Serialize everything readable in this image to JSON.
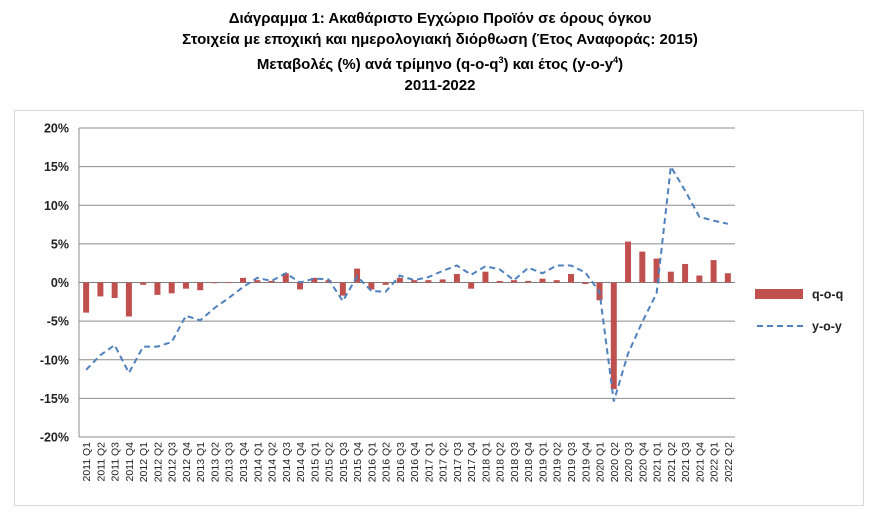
{
  "titles": {
    "line1": "Διάγραμμα 1: Ακαθάριστο Εγχώριο Προϊόν σε όρους όγκου",
    "line2": "Στοιχεία με εποχική και ημερολογιακή διόρθωση (Έτος Αναφοράς: 2015)",
    "line3_main": "Μεταβολές (%) ανά τρίμηνο (q-o-q",
    "line3_sup1": "3",
    "line3_mid": ") και έτος (y-o-y",
    "line3_sup2": "4",
    "line3_end": ")",
    "line4": "2011-2022"
  },
  "chart_data": {
    "type": "bar",
    "title": "",
    "xlabel": "",
    "ylabel": "",
    "ylim": [
      -20,
      20
    ],
    "yticks": [
      20,
      15,
      10,
      5,
      0,
      -5,
      -10,
      -15,
      -20
    ],
    "ytick_labels": [
      "20%",
      "15%",
      "10%",
      "5%",
      "0%",
      "-5%",
      "-10%",
      "-15%",
      "-20%"
    ],
    "grid": true,
    "legend_placement": "right",
    "categories": [
      "2011 Q1",
      "2011 Q2",
      "2011 Q3",
      "2011 Q4",
      "2012 Q1",
      "2012 Q2",
      "2012 Q3",
      "2012 Q4",
      "2013 Q1",
      "2013 Q2",
      "2013 Q3",
      "2013 Q4",
      "2014 Q1",
      "2014 Q2",
      "2014 Q3",
      "2014 Q4",
      "2015 Q1",
      "2015 Q2",
      "2015 Q3",
      "2015 Q4",
      "2016 Q1",
      "2016 Q2",
      "2016 Q3",
      "2016 Q4",
      "2017 Q1",
      "2017 Q2",
      "2017 Q3",
      "2017 Q4",
      "2018 Q1",
      "2018 Q2",
      "2018 Q3",
      "2018 Q4",
      "2019 Q1",
      "2019 Q2",
      "2019 Q3",
      "2019 Q4",
      "2020 Q1",
      "2020 Q2",
      "2020 Q3",
      "2020 Q4",
      "2021 Q1",
      "2021 Q2",
      "2021 Q3",
      "2021 Q4",
      "2022 Q1",
      "2022 Q2"
    ],
    "series": [
      {
        "name": "q-o-q",
        "kind": "bar",
        "color": "#c0504d",
        "values": [
          -3.9,
          -1.8,
          -2.0,
          -4.4,
          -0.3,
          -1.6,
          -1.4,
          -0.8,
          -1.0,
          -0.1,
          0.0,
          0.6,
          0.3,
          0.2,
          1.2,
          -0.9,
          0.6,
          0.3,
          -1.7,
          1.8,
          -0.9,
          -0.3,
          0.6,
          0.3,
          0.3,
          0.4,
          1.1,
          -0.8,
          1.4,
          0.2,
          0.3,
          0.2,
          0.5,
          0.3,
          1.1,
          -0.2,
          -2.3,
          -13.8,
          5.3,
          4.0,
          3.1,
          1.4,
          2.4,
          0.9,
          2.9,
          1.2
        ]
      },
      {
        "name": "y-o-y",
        "kind": "line-dashed",
        "color": "#4f81bd",
        "values": [
          -11.3,
          -9.4,
          -8.1,
          -11.7,
          -8.3,
          -8.3,
          -7.7,
          -4.3,
          -4.9,
          -3.3,
          -2.0,
          -0.6,
          0.6,
          0.2,
          1.2,
          0.0,
          0.5,
          0.4,
          -2.4,
          0.8,
          -1.1,
          -1.2,
          0.9,
          0.3,
          0.7,
          1.5,
          2.2,
          1.0,
          2.1,
          1.7,
          0.3,
          1.9,
          1.2,
          2.2,
          2.2,
          1.3,
          -1.2,
          -15.4,
          -9.2,
          -5.1,
          -1.4,
          15.0,
          11.9,
          8.5,
          8.0,
          7.6
        ]
      }
    ]
  }
}
